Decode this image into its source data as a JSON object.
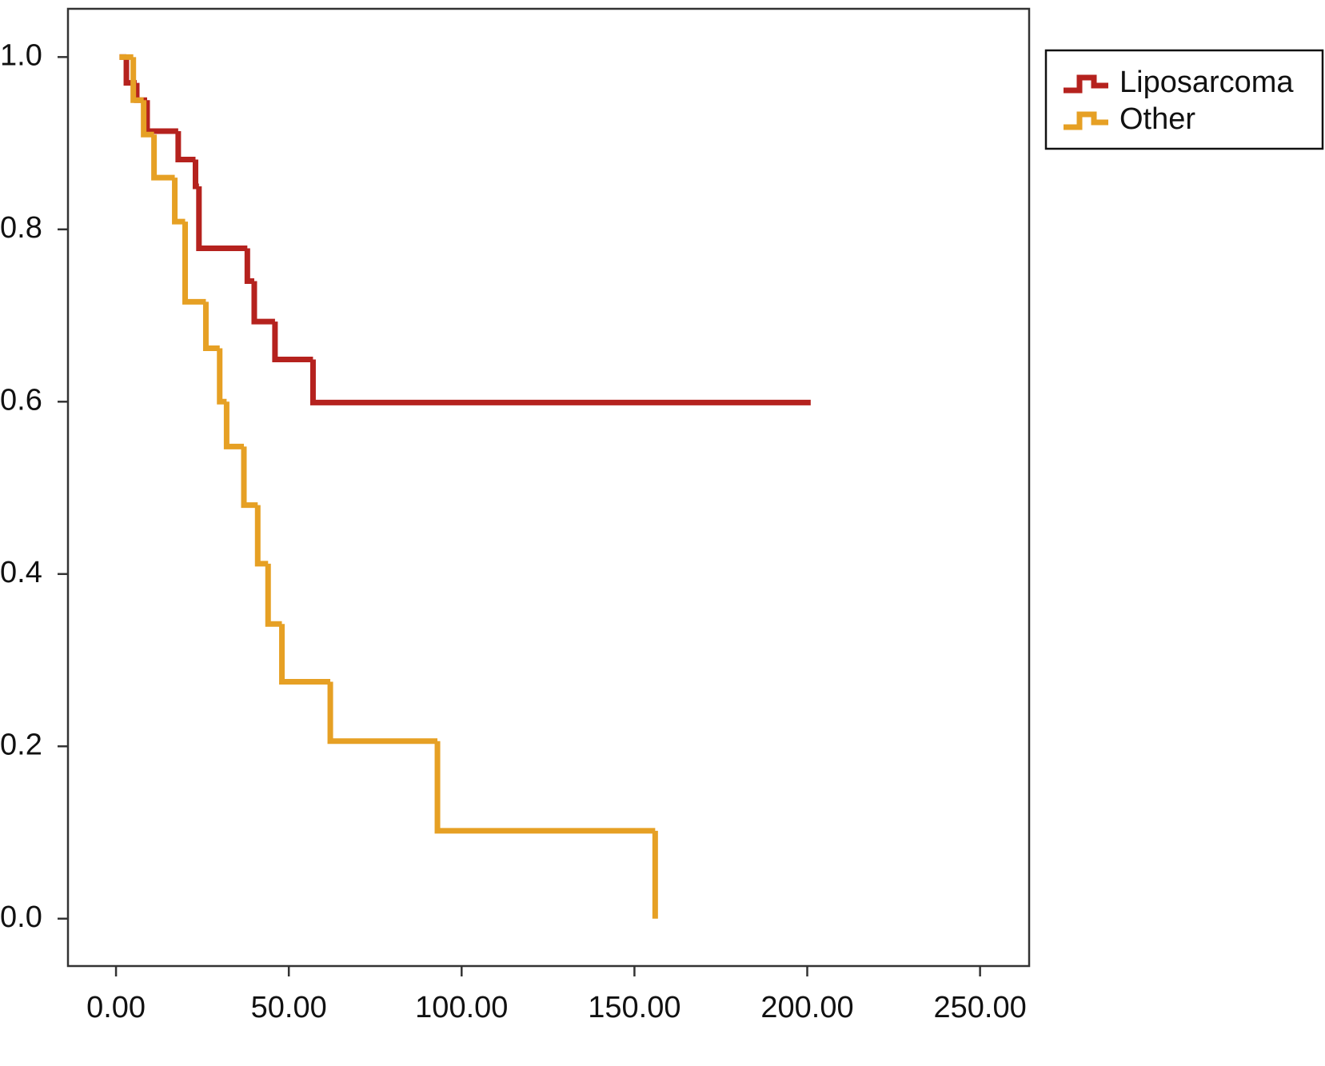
{
  "chart_data": {
    "type": "line",
    "step": "post",
    "xlim": [
      -13.9,
      264.2
    ],
    "ylim": [
      -0.055,
      1.056
    ],
    "xticks": [
      {
        "value": 0,
        "label": "0.00"
      },
      {
        "value": 50,
        "label": "50.00"
      },
      {
        "value": 100,
        "label": "100.00"
      },
      {
        "value": 150,
        "label": "150.00"
      },
      {
        "value": 200,
        "label": "200.00"
      },
      {
        "value": 250,
        "label": "250.00"
      }
    ],
    "yticks": [
      {
        "value": 0,
        "label": "0.0"
      },
      0.2,
      0.4,
      0.6,
      0.8,
      {
        "value": 1,
        "label": "1.0"
      }
    ],
    "legend": "outside-right-top",
    "series": [
      {
        "name": "Liposarcoma",
        "color": "#b5221e",
        "x": [
          1,
          3,
          6,
          9,
          18,
          23,
          24,
          38,
          40,
          46,
          57,
          201
        ],
        "values": [
          1.0,
          0.97,
          0.95,
          0.914,
          0.881,
          0.85,
          0.778,
          0.74,
          0.693,
          0.649,
          0.599,
          0.599
        ]
      },
      {
        "name": "Other",
        "color": "#e6a024",
        "x": [
          1,
          5,
          8,
          11,
          17,
          20,
          26,
          30,
          32,
          37,
          41,
          44,
          48,
          62,
          93,
          156
        ],
        "values": [
          1.0,
          0.95,
          0.91,
          0.86,
          0.809,
          0.716,
          0.662,
          0.6,
          0.548,
          0.48,
          0.412,
          0.342,
          0.275,
          0.206,
          0.102,
          0.0
        ]
      }
    ]
  }
}
